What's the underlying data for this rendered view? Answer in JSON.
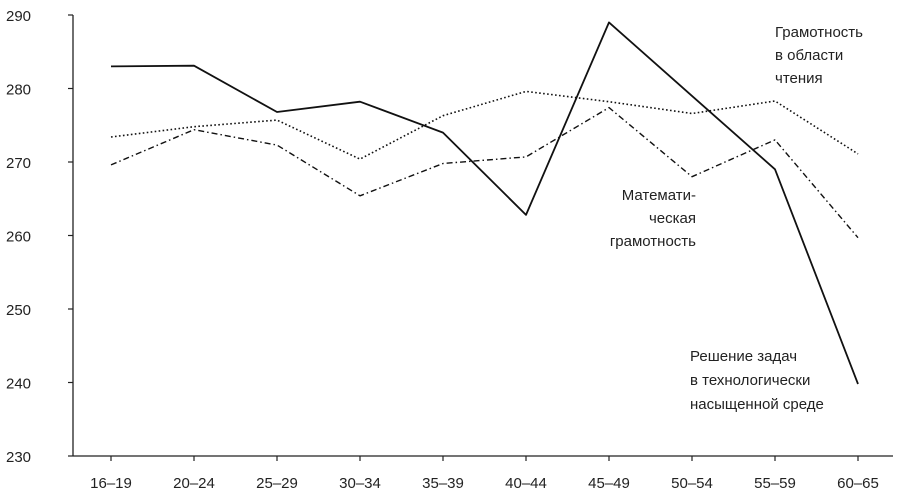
{
  "chart_data": {
    "type": "line",
    "categories": [
      "16–19",
      "20–24",
      "25–29",
      "30–34",
      "35–39",
      "40–44",
      "45–49",
      "50–54",
      "55–59",
      "60–65"
    ],
    "ylim": [
      230,
      290
    ],
    "yticks": [
      "230",
      "240",
      "250",
      "260",
      "270",
      "280",
      "290"
    ],
    "grid": false,
    "legend": "none",
    "series": [
      {
        "key": "problem-solving",
        "style": "solid",
        "values": [
          283,
          283.1,
          276.8,
          278.2,
          274,
          262.8,
          289,
          279,
          269,
          239.8
        ]
      },
      {
        "key": "reading",
        "style": "dotted",
        "values": [
          273.4,
          274.8,
          275.7,
          270.4,
          276.3,
          279.6,
          278.2,
          276.6,
          278.3,
          271.1
        ]
      },
      {
        "key": "math",
        "style": "dashdot",
        "values": [
          269.6,
          274.4,
          272.3,
          265.4,
          269.8,
          270.7,
          277.4,
          268,
          273,
          259.7
        ]
      }
    ],
    "annotations": [
      {
        "key": "reading",
        "lines": [
          "Грамотность",
          "в области",
          "чтения"
        ]
      },
      {
        "key": "math",
        "lines": [
          "Математи-",
          "ческая",
          "грамотность"
        ]
      },
      {
        "key": "problem-solving",
        "lines": [
          "Решение задач",
          "в технологически",
          "насыщенной среде"
        ]
      }
    ]
  }
}
